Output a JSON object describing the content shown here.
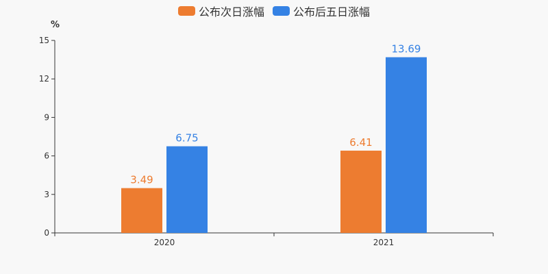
{
  "chart_data": {
    "type": "bar",
    "categories": [
      "2020",
      "2021"
    ],
    "series": [
      {
        "name": "公布次日涨幅",
        "values": [
          3.49,
          6.41
        ],
        "color": "#ed7c30"
      },
      {
        "name": "公布后五日涨幅",
        "values": [
          6.75,
          13.69
        ],
        "color": "#3582e4"
      }
    ],
    "ylabel": "%",
    "ylim": [
      0,
      15
    ],
    "yticks": [
      "0",
      "3",
      "6",
      "9",
      "12",
      "15"
    ],
    "legend_position": "top-center",
    "grid": false
  }
}
